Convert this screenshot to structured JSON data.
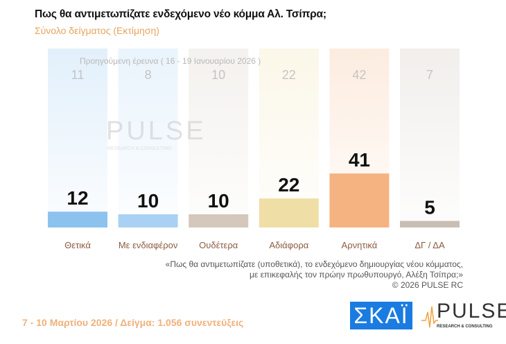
{
  "title": "Πως θα αντιμετωπίζατε ενδεχόμενο νέο κόμμα Αλ. Τσίπρα;",
  "subtitle": "Σύνολο δείγματος  (Εκτίμηση)",
  "previous_note": "Προηγούμενη έρευνα ( 16 - 19 Ιανουαρίου 2026 )",
  "question_line1": "«Πως θα αντιμετωπίζατε (υποθετικά), το ενδεχόμενο δημιουργίας νέου κόμματος,",
  "question_line2": "με επικεφαλής τον πρώην πρωθυπουργό, Αλέξη Τσίπρα;»",
  "copyright": "©  2026  PULSE RC",
  "footer": "7 - 10  Μαρτίου 2026  /  Δείγμα:  1.056 συνεντεύξεις",
  "logos": {
    "skai": "ΣΚΑΪ",
    "pulse": "PULSE",
    "pulse_sub": "RESEARCH & CONSULTING"
  },
  "chart_data": {
    "type": "bar",
    "categories": [
      "Θετικά",
      "Με ενδιαφέρον",
      "Ουδέτερα",
      "Αδιάφορα",
      "Αρνητικά",
      "ΔΓ / ΔΑ"
    ],
    "series": [
      {
        "values": [
          12,
          10,
          10,
          22,
          41,
          5
        ]
      }
    ],
    "previous_values": [
      11,
      8,
      10,
      22,
      42,
      7
    ],
    "colors": [
      "#8cc2ee",
      "#a9d1f4",
      "#d3c8bb",
      "#efdfa6",
      "#f5b382",
      "#c8beb3"
    ],
    "ylim": [
      0,
      100
    ]
  }
}
